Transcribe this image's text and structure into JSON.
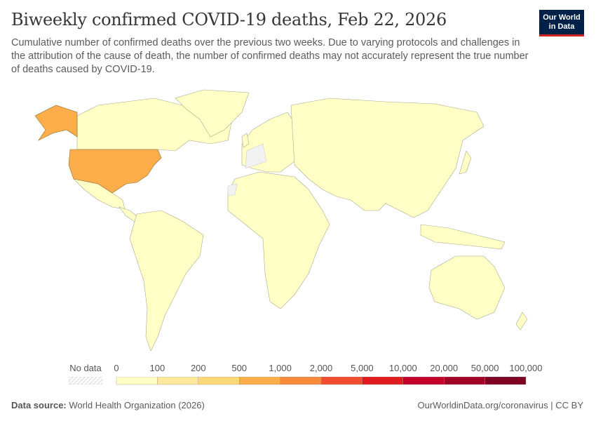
{
  "header": {
    "title": "Biweekly confirmed COVID-19 deaths, Feb 22, 2026",
    "subtitle": "Cumulative number of confirmed deaths over the previous two weeks. Due to varying protocols and challenges in the attribution of the cause of death, the number of confirmed deaths may not accurately represent the true number of deaths caused by COVID-19.",
    "logo": "Our World in Data"
  },
  "legend": {
    "no_data_label": "No data",
    "no_data_pattern": "hatched",
    "ticks": [
      "0",
      "100",
      "200",
      "500",
      "1,000",
      "2,000",
      "5,000",
      "10,000",
      "20,000",
      "50,000",
      "100,000"
    ],
    "colors": [
      "#ffffc6",
      "#fee99a",
      "#fed875",
      "#fdae4b",
      "#f88a3a",
      "#f24d2e",
      "#e01b1e",
      "#c2002a",
      "#a30025",
      "#7e0023"
    ]
  },
  "map": {
    "highlighted": [
      {
        "region": "United States",
        "bin": "500–1,000",
        "color": "#fdae4b"
      }
    ],
    "default_color": "#ffffc6",
    "border_color": "#a0a090"
  },
  "footer": {
    "source_label": "Data source:",
    "source": "World Health Organization (2026)",
    "link": "OurWorldinData.org/coronavirus | CC BY"
  }
}
